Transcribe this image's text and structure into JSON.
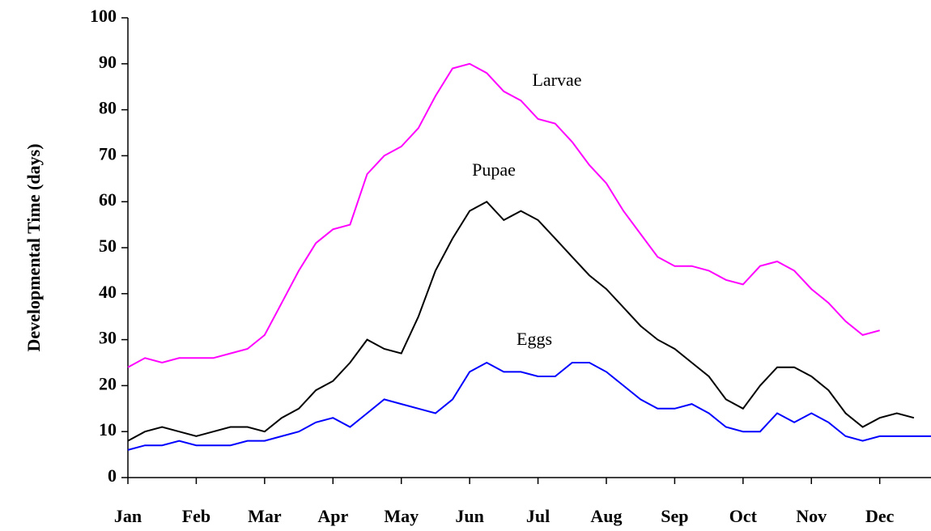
{
  "chart_data": {
    "type": "line",
    "ylabel": "Developmental Time (days)",
    "categories": [
      "Jan",
      null,
      null,
      null,
      "Feb",
      null,
      null,
      null,
      "Mar",
      null,
      null,
      null,
      "Apr",
      null,
      null,
      null,
      "May",
      null,
      null,
      null,
      "Jun",
      null,
      null,
      null,
      "Jul",
      null,
      null,
      null,
      "Aug",
      null,
      null,
      null,
      "Sep",
      null,
      null,
      null,
      "Oct",
      null,
      null,
      null,
      "Nov",
      null,
      null,
      null,
      "Dec",
      null,
      null,
      null
    ],
    "series": [
      {
        "name": "Larvae",
        "color": "#ff00ff",
        "values": [
          24,
          26,
          25,
          26,
          26,
          26,
          27,
          28,
          31,
          38,
          45,
          51,
          54,
          55,
          66,
          70,
          72,
          76,
          83,
          89,
          90,
          88,
          84,
          82,
          78,
          77,
          73,
          68,
          64,
          58,
          53,
          48,
          46,
          46,
          45,
          43,
          42,
          46,
          47,
          45,
          41,
          38,
          34,
          31,
          32,
          null,
          null,
          null
        ]
      },
      {
        "name": "Pupae",
        "color": "#000000",
        "values": [
          8,
          10,
          11,
          10,
          9,
          10,
          11,
          11,
          10,
          13,
          15,
          19,
          21,
          25,
          30,
          28,
          27,
          35,
          45,
          52,
          58,
          60,
          56,
          58,
          56,
          52,
          48,
          44,
          41,
          37,
          33,
          30,
          28,
          25,
          22,
          17,
          15,
          20,
          24,
          24,
          22,
          19,
          14,
          11,
          13,
          14,
          13,
          null
        ]
      },
      {
        "name": "Eggs",
        "color": "#0000ff",
        "values": [
          6,
          7,
          7,
          8,
          7,
          7,
          7,
          8,
          8,
          9,
          10,
          12,
          13,
          11,
          14,
          17,
          16,
          15,
          14,
          17,
          23,
          25,
          23,
          23,
          22,
          22,
          25,
          25,
          23,
          20,
          17,
          15,
          15,
          16,
          14,
          11,
          10,
          10,
          14,
          12,
          14,
          12,
          9,
          8,
          9,
          9,
          9,
          9
        ]
      }
    ],
    "annotations": [
      "Larvae",
      "Pupae",
      "Eggs"
    ],
    "ylim": [
      0,
      100
    ],
    "yticks": [
      0,
      10,
      20,
      30,
      40,
      50,
      60,
      70,
      80,
      90,
      100
    ],
    "grid": false
  }
}
